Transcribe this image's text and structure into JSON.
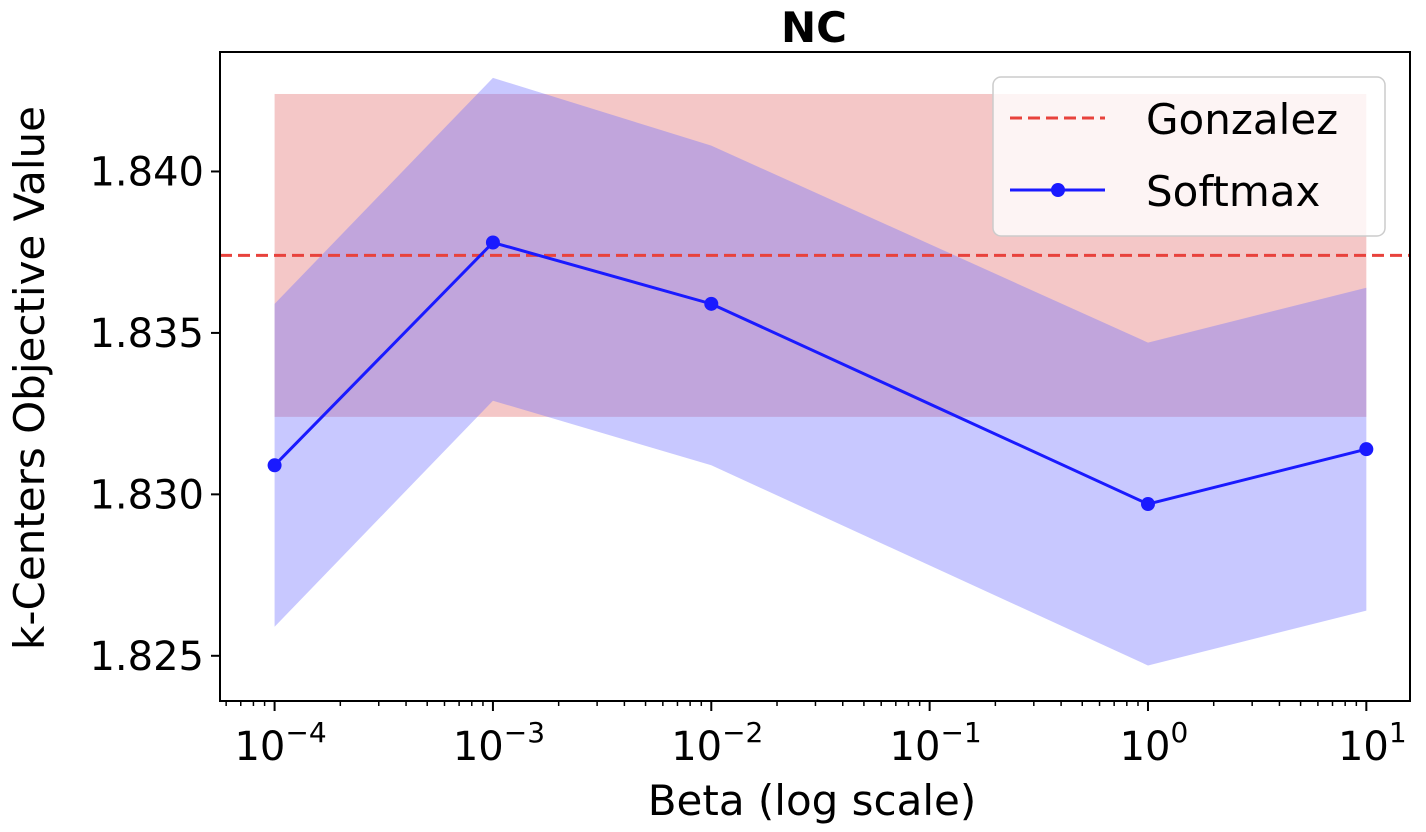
{
  "chart_data": {
    "type": "line",
    "title": "NC",
    "xlabel": "Beta (log scale)",
    "ylabel": "k-Centers Objective Value",
    "x_scale": "log",
    "x_exponent_range": [
      -4.25,
      1.2
    ],
    "ylim": [
      1.8236,
      1.8437
    ],
    "y_ticks": [
      1.825,
      1.83,
      1.835,
      1.84
    ],
    "y_tick_labels": [
      "1.825",
      "1.830",
      "1.835",
      "1.840"
    ],
    "x_ticks": [
      {
        "base": "10",
        "exp": "-4",
        "value": -4
      },
      {
        "base": "10",
        "exp": "-3",
        "value": -3
      },
      {
        "base": "10",
        "exp": "-2",
        "value": -2
      },
      {
        "base": "10",
        "exp": "-1",
        "value": -1
      },
      {
        "base": "10",
        "exp": "0",
        "value": 0
      },
      {
        "base": "10",
        "exp": "1",
        "value": 1
      }
    ],
    "legend": {
      "placement": "top-right",
      "entries": [
        "Gonzalez",
        "Softmax"
      ]
    },
    "series": [
      {
        "name": "Gonzalez",
        "style": "dashed",
        "color": "#e8423c",
        "band_color": "#f4c7c7",
        "value": 1.8374,
        "band_low": 1.8324,
        "band_high": 1.8424,
        "x_start": -4,
        "x_end": 1
      },
      {
        "name": "Softmax",
        "style": "solid-markers",
        "color": "#1a1aff",
        "band_color": "rgba(110,110,255,0.38)",
        "x": [
          -4,
          -3,
          -2,
          0,
          1
        ],
        "values": [
          1.8309,
          1.8378,
          1.8359,
          1.8297,
          1.8314
        ],
        "band_low": [
          1.8259,
          1.8329,
          1.8309,
          1.8247,
          1.8264
        ],
        "band_high": [
          1.8359,
          1.8429,
          1.8408,
          1.8347,
          1.8364
        ]
      }
    ]
  }
}
